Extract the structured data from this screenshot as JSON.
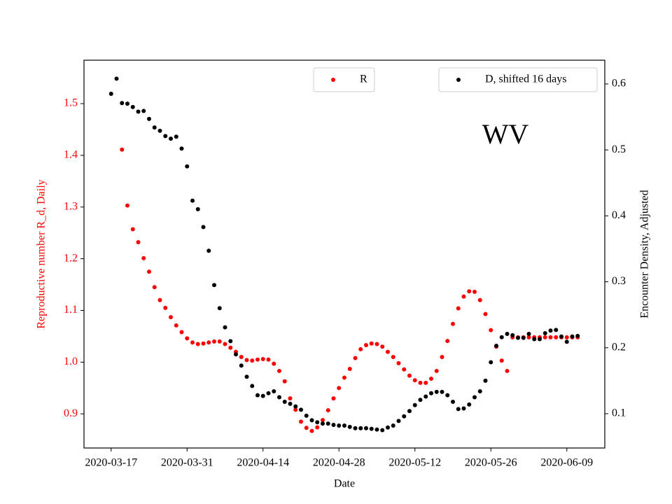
{
  "chart_data": {
    "type": "scatter",
    "annotation": "WV",
    "xlabel": "Date",
    "ylabel": "Reproductive number R_d, Daily",
    "y2label": "Encounter Density, Adjusted",
    "ylabel_color": "red",
    "xlim": [
      "2020-03-12",
      "2020-06-16"
    ],
    "xticks": [
      "2020-03-17",
      "2020-03-31",
      "2020-04-14",
      "2020-04-28",
      "2020-05-12",
      "2020-05-26",
      "2020-06-09"
    ],
    "ylim": [
      0.834,
      1.584
    ],
    "yticks": [
      0.9,
      {
        "value": 1,
        "label": "1.0"
      },
      1.1,
      1.2,
      1.3,
      1.4,
      1.5
    ],
    "y2lim": [
      0.048,
      0.636
    ],
    "y2ticks": [
      0.1,
      0.2,
      0.3,
      0.4,
      0.5,
      0.6
    ],
    "series": [
      {
        "name": "R",
        "color": "#ff0000",
        "axis": "y",
        "legend": "upper center",
        "x": [
          "2020-03-19",
          "2020-03-20",
          "2020-03-21",
          "2020-03-22",
          "2020-03-23",
          "2020-03-24",
          "2020-03-25",
          "2020-03-26",
          "2020-03-27",
          "2020-03-28",
          "2020-03-29",
          "2020-03-30",
          "2020-03-31",
          "2020-04-01",
          "2020-04-02",
          "2020-04-03",
          "2020-04-04",
          "2020-04-05",
          "2020-04-06",
          "2020-04-07",
          "2020-04-08",
          "2020-04-09",
          "2020-04-10",
          "2020-04-11",
          "2020-04-12",
          "2020-04-13",
          "2020-04-14",
          "2020-04-15",
          "2020-04-16",
          "2020-04-17",
          "2020-04-18",
          "2020-04-19",
          "2020-04-20",
          "2020-04-21",
          "2020-04-22",
          "2020-04-23",
          "2020-04-24",
          "2020-04-25",
          "2020-04-26",
          "2020-04-27",
          "2020-04-28",
          "2020-04-29",
          "2020-04-30",
          "2020-05-01",
          "2020-05-02",
          "2020-05-03",
          "2020-05-04",
          "2020-05-05",
          "2020-05-06",
          "2020-05-07",
          "2020-05-08",
          "2020-05-09",
          "2020-05-10",
          "2020-05-11",
          "2020-05-12",
          "2020-05-13",
          "2020-05-14",
          "2020-05-15",
          "2020-05-16",
          "2020-05-17",
          "2020-05-18",
          "2020-05-19",
          "2020-05-20",
          "2020-05-21",
          "2020-05-22",
          "2020-05-23",
          "2020-05-24",
          "2020-05-25",
          "2020-05-26",
          "2020-05-27",
          "2020-05-28",
          "2020-05-29",
          "2020-05-30",
          "2020-05-31",
          "2020-06-01",
          "2020-06-02",
          "2020-06-03",
          "2020-06-04",
          "2020-06-05",
          "2020-06-06",
          "2020-06-07",
          "2020-06-08",
          "2020-06-09",
          "2020-06-10",
          "2020-06-11"
        ],
        "values": [
          1.411,
          1.303,
          1.257,
          1.232,
          1.201,
          1.175,
          1.145,
          1.12,
          1.105,
          1.087,
          1.071,
          1.058,
          1.046,
          1.038,
          1.035,
          1.036,
          1.038,
          1.04,
          1.04,
          1.035,
          1.028,
          1.02,
          1.01,
          1.004,
          1.003,
          1.005,
          1.006,
          1.005,
          0.997,
          0.983,
          0.963,
          0.93,
          0.908,
          0.885,
          0.873,
          0.867,
          0.874,
          0.888,
          0.907,
          0.93,
          0.95,
          0.97,
          0.987,
          1.008,
          1.025,
          1.033,
          1.036,
          1.035,
          1.03,
          1.02,
          1.01,
          0.998,
          0.986,
          0.974,
          0.965,
          0.96,
          0.96,
          0.968,
          0.983,
          1.01,
          1.041,
          1.074,
          1.104,
          1.127,
          1.137,
          1.136,
          1.12,
          1.093,
          1.062,
          1.03,
          1.003,
          0.983,
          1.048,
          1.048,
          1.048,
          1.048,
          1.048,
          1.048,
          1.048,
          1.048,
          1.048,
          1.048,
          1.048,
          1.048,
          1.048
        ]
      },
      {
        "name": "D, shifted 16 days",
        "color": "#000000",
        "axis": "y2",
        "legend": "upper right",
        "x": [
          "2020-03-17",
          "2020-03-18",
          "2020-03-19",
          "2020-03-20",
          "2020-03-21",
          "2020-03-22",
          "2020-03-23",
          "2020-03-24",
          "2020-03-25",
          "2020-03-26",
          "2020-03-27",
          "2020-03-28",
          "2020-03-29",
          "2020-03-30",
          "2020-03-31",
          "2020-04-01",
          "2020-04-02",
          "2020-04-03",
          "2020-04-04",
          "2020-04-05",
          "2020-04-06",
          "2020-04-07",
          "2020-04-08",
          "2020-04-09",
          "2020-04-10",
          "2020-04-11",
          "2020-04-12",
          "2020-04-13",
          "2020-04-14",
          "2020-04-15",
          "2020-04-16",
          "2020-04-17",
          "2020-04-18",
          "2020-04-19",
          "2020-04-20",
          "2020-04-21",
          "2020-04-22",
          "2020-04-23",
          "2020-04-24",
          "2020-04-25",
          "2020-04-26",
          "2020-04-27",
          "2020-04-28",
          "2020-04-29",
          "2020-04-30",
          "2020-05-01",
          "2020-05-02",
          "2020-05-03",
          "2020-05-04",
          "2020-05-05",
          "2020-05-06",
          "2020-05-07",
          "2020-05-08",
          "2020-05-09",
          "2020-05-10",
          "2020-05-11",
          "2020-05-12",
          "2020-05-13",
          "2020-05-14",
          "2020-05-15",
          "2020-05-16",
          "2020-05-17",
          "2020-05-18",
          "2020-05-19",
          "2020-05-20",
          "2020-05-21",
          "2020-05-22",
          "2020-05-23",
          "2020-05-24",
          "2020-05-25",
          "2020-05-26",
          "2020-05-27",
          "2020-05-28",
          "2020-05-29",
          "2020-05-30",
          "2020-05-31",
          "2020-06-01",
          "2020-06-02",
          "2020-06-03",
          "2020-06-04",
          "2020-06-05",
          "2020-06-06",
          "2020-06-07",
          "2020-06-08",
          "2020-06-09",
          "2020-06-10",
          "2020-06-11"
        ],
        "values": [
          0.585,
          0.608,
          0.571,
          0.57,
          0.565,
          0.558,
          0.559,
          0.547,
          0.534,
          0.529,
          0.521,
          0.517,
          0.52,
          0.502,
          0.475,
          0.423,
          0.41,
          0.383,
          0.347,
          0.295,
          0.26,
          0.231,
          0.21,
          0.19,
          0.173,
          0.156,
          0.142,
          0.128,
          0.127,
          0.131,
          0.134,
          0.125,
          0.118,
          0.115,
          0.111,
          0.106,
          0.097,
          0.09,
          0.087,
          0.085,
          0.085,
          0.083,
          0.082,
          0.082,
          0.08,
          0.078,
          0.078,
          0.078,
          0.077,
          0.076,
          0.075,
          0.079,
          0.082,
          0.089,
          0.096,
          0.104,
          0.113,
          0.121,
          0.126,
          0.131,
          0.133,
          0.133,
          0.128,
          0.118,
          0.107,
          0.108,
          0.114,
          0.125,
          0.134,
          0.15,
          0.178,
          0.203,
          0.216,
          0.221,
          0.219,
          0.215,
          0.215,
          0.221,
          0.213,
          0.213,
          0.222,
          0.226,
          0.227,
          0.217,
          0.209,
          0.217,
          0.218
        ]
      }
    ]
  }
}
